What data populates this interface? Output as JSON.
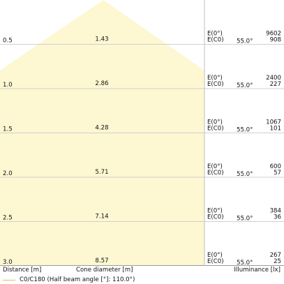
{
  "chart_data": {
    "type": "area",
    "title": "",
    "xlabel": "Distance [m]",
    "xlabel_mid": "Cone diameter [m]",
    "ylabel": "Illuminance [lx]",
    "half_beam_angle_deg": 55.0,
    "rows": [
      {
        "distance": "0.5",
        "diameter": "1.43",
        "e0": "9602",
        "ec0": "908"
      },
      {
        "distance": "1.0",
        "diameter": "2.86",
        "e0": "2400",
        "ec0": "227"
      },
      {
        "distance": "1.5",
        "diameter": "4.28",
        "e0": "1067",
        "ec0": "101"
      },
      {
        "distance": "2.0",
        "diameter": "5.71",
        "e0": "600",
        "ec0": "57"
      },
      {
        "distance": "2.5",
        "diameter": "7.14",
        "e0": "384",
        "ec0": "36"
      },
      {
        "distance": "3.0",
        "diameter": "8.57",
        "e0": "267",
        "ec0": "25"
      }
    ],
    "labels": {
      "e0": "E(0°)",
      "ec0": "E(C0)",
      "angle": "55.0°"
    },
    "legend": {
      "entry": "C0/C180 (Half beam angle [°]: 110.0°)",
      "color": "#e8b96a"
    },
    "colors": {
      "fill": "#fdf7d2",
      "grid": "#d0d0d0",
      "axis": "#999999"
    }
  }
}
